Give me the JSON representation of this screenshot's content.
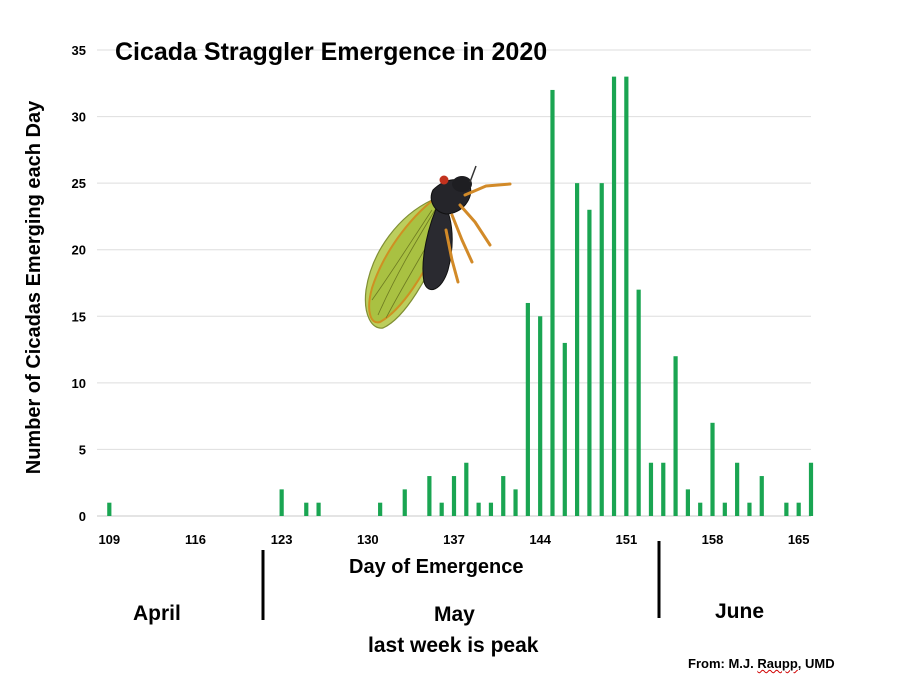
{
  "chart_data": {
    "type": "bar",
    "title": "Cicada Straggler Emergence in 2020",
    "xlabel": "Day of Emergence",
    "ylabel": "Number of Cicadas Emerging each Day",
    "x_ticks": [
      109,
      116,
      123,
      130,
      137,
      144,
      151,
      158,
      165
    ],
    "y_ticks": [
      0,
      5,
      10,
      15,
      20,
      25,
      30,
      35
    ],
    "xlim": [
      108,
      166
    ],
    "ylim": [
      0,
      35
    ],
    "grid": "horizontal",
    "bar_color": "#1aa552",
    "x": [
      109,
      110,
      111,
      112,
      113,
      114,
      115,
      116,
      117,
      118,
      119,
      120,
      121,
      122,
      123,
      124,
      125,
      126,
      127,
      128,
      129,
      130,
      131,
      132,
      133,
      134,
      135,
      136,
      137,
      138,
      139,
      140,
      141,
      142,
      143,
      144,
      145,
      146,
      147,
      148,
      149,
      150,
      151,
      152,
      153,
      154,
      155,
      156,
      157,
      158,
      159,
      160,
      161,
      162,
      163,
      164,
      165,
      166
    ],
    "values": [
      1,
      0,
      0,
      0,
      0,
      0,
      0,
      0,
      0,
      0,
      0,
      0,
      0,
      0,
      2,
      0,
      1,
      1,
      0,
      0,
      0,
      0,
      1,
      0,
      2,
      0,
      3,
      1,
      3,
      4,
      1,
      1,
      3,
      2,
      16,
      15,
      32,
      13,
      25,
      23,
      25,
      33,
      33,
      17,
      4,
      4,
      12,
      2,
      1,
      7,
      1,
      4,
      1,
      3,
      0,
      1,
      1,
      4
    ]
  },
  "annotations": {
    "months": [
      "April",
      "May",
      "June"
    ],
    "peak_note": "last week is peak",
    "credit_prefix": "From: M.J. ",
    "credit_name": "Raupp",
    "credit_suffix": ", UMD"
  },
  "image": {
    "description": "cicada-illustration"
  }
}
